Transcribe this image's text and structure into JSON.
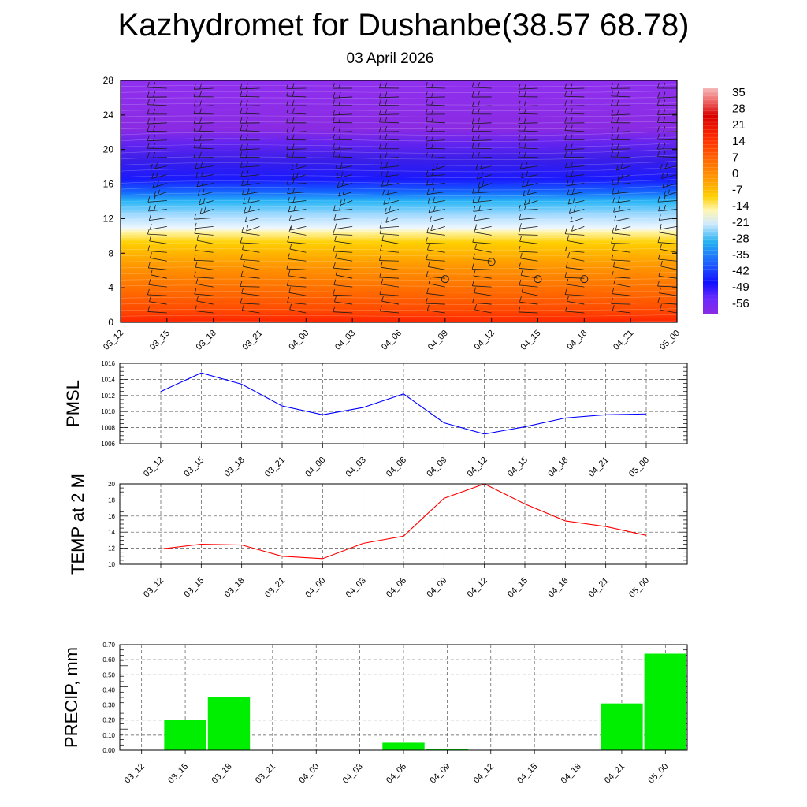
{
  "header": {
    "title": "Kazhydromet for Dushanbe(38.57 68.78)",
    "date": "03 April 2026"
  },
  "chart_data": [
    {
      "type": "heatmap",
      "name": "temperature-wind cross-section",
      "x_ticks": [
        "03_12",
        "03_15",
        "03_18",
        "03_21",
        "04_00",
        "04_03",
        "04_06",
        "04_09",
        "04_12",
        "04_15",
        "04_18",
        "04_21",
        "05_00"
      ],
      "y_ticks": [
        "0",
        "4",
        "8",
        "12",
        "16",
        "20",
        "24",
        "28"
      ],
      "ylim": [
        0,
        28
      ],
      "colorbar_labels": [
        "35",
        "28",
        "21",
        "14",
        "7",
        "0",
        "-7",
        "-14",
        "-21",
        "-28",
        "-35",
        "-42",
        "-49",
        "-56"
      ],
      "colorbar_range": [
        -63,
        42
      ],
      "calm_markers": [
        {
          "time": "04_09",
          "height": 5
        },
        {
          "time": "04_12",
          "height": 7
        },
        {
          "time": "04_15",
          "height": 5
        },
        {
          "time": "04_18",
          "height": 5
        }
      ]
    },
    {
      "type": "line",
      "ylabel": "PMSL",
      "categories": [
        "03_12",
        "03_15",
        "03_18",
        "03_21",
        "04_00",
        "04_03",
        "04_06",
        "04_09",
        "04_12",
        "04_15",
        "04_18",
        "04_21",
        "05_00"
      ],
      "values": [
        1012.5,
        1014.8,
        1013.4,
        1010.7,
        1009.6,
        1010.5,
        1012.2,
        1008.6,
        1007.2,
        1008.1,
        1009.2,
        1009.6,
        1009.7
      ],
      "ylim": [
        1006,
        1016
      ],
      "y_ticks": [
        "1006",
        "1008",
        "1010",
        "1012",
        "1014",
        "1016"
      ],
      "color": "#0000ff"
    },
    {
      "type": "line",
      "ylabel": "TEMP at 2 M",
      "categories": [
        "03_12",
        "03_15",
        "03_18",
        "03_21",
        "04_00",
        "04_03",
        "04_06",
        "04_09",
        "04_12",
        "04_15",
        "04_18",
        "04_21",
        "05_00"
      ],
      "values": [
        11.9,
        12.5,
        12.4,
        11.0,
        10.7,
        12.6,
        13.5,
        18.2,
        20.0,
        17.5,
        15.4,
        14.7,
        13.6
      ],
      "ylim": [
        10,
        20
      ],
      "y_ticks": [
        "10",
        "12",
        "14",
        "16",
        "18",
        "20"
      ],
      "color": "#ff0000"
    },
    {
      "type": "bar",
      "ylabel": "PRECIP, mm",
      "categories": [
        "03_12",
        "03_15",
        "03_18",
        "03_21",
        "04_00",
        "04_03",
        "04_06",
        "04_09",
        "04_12",
        "04_15",
        "04_18",
        "04_21",
        "05_00"
      ],
      "values": [
        0,
        0.2,
        0.35,
        0,
        0,
        0,
        0.05,
        0.01,
        0,
        0,
        0,
        0.31,
        0.64
      ],
      "ylim": [
        0,
        0.7
      ],
      "y_ticks": [
        "0.00",
        "0.10",
        "0.20",
        "0.30",
        "0.40",
        "0.50",
        "0.60",
        "0.70"
      ],
      "color": "#00ee00"
    }
  ]
}
